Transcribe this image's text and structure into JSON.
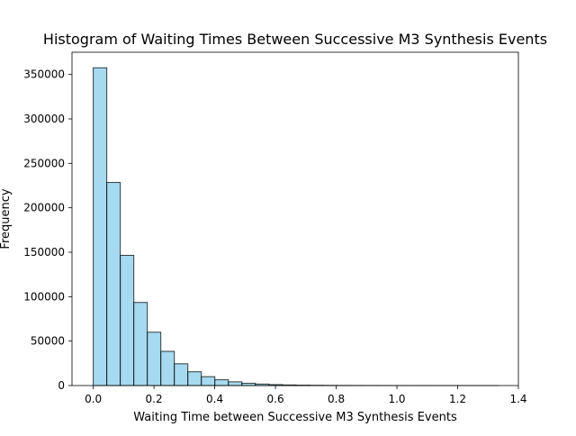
{
  "chart_data": {
    "type": "bar",
    "title": "Histogram of Waiting Times Between Successive M3 Synthesis Events",
    "xlabel": "Waiting Time between Successive M3 Synthesis Events",
    "ylabel": "Frequency",
    "xlim": [
      -0.07,
      1.4
    ],
    "ylim": [
      0,
      375000
    ],
    "xticks": [
      0.0,
      0.2,
      0.4,
      0.6,
      0.8,
      1.0,
      1.2,
      1.4
    ],
    "xtick_labels": [
      "0.0",
      "0.2",
      "0.4",
      "0.6",
      "0.8",
      "1.0",
      "1.2",
      "1.4"
    ],
    "yticks": [
      0,
      50000,
      100000,
      150000,
      200000,
      250000,
      300000,
      350000
    ],
    "ytick_labels": [
      "0",
      "50000",
      "100000",
      "150000",
      "200000",
      "250000",
      "300000",
      "350000"
    ],
    "grid": false,
    "bin_edges": [
      0.0,
      0.0445,
      0.089,
      0.1335,
      0.178,
      0.2225,
      0.267,
      0.3115,
      0.356,
      0.4005,
      0.445,
      0.4895,
      0.534,
      0.5785,
      0.623,
      0.6675,
      0.712,
      0.7565,
      0.801,
      0.8455,
      0.89,
      0.9345,
      0.979,
      1.0235,
      1.068,
      1.1125,
      1.157,
      1.2015,
      1.246,
      1.2905,
      1.335
    ],
    "values": [
      357500,
      228500,
      146500,
      93500,
      60000,
      38500,
      24500,
      15500,
      10000,
      6500,
      4200,
      2600,
      1700,
      1100,
      700,
      450,
      290,
      180,
      115,
      75,
      48,
      30,
      19,
      12,
      8,
      5,
      3,
      2,
      1,
      1
    ],
    "colors": {
      "bar_fill": "#87ceeb",
      "bar_edge": "#000000"
    }
  }
}
